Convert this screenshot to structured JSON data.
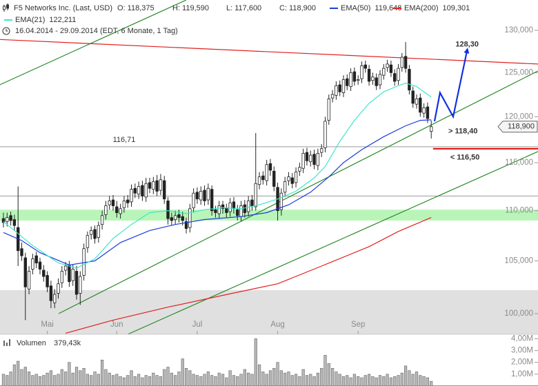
{
  "header": {
    "title": "F5 Networks Inc. (Last, USD)",
    "quote": [
      "O: 118,375",
      "H: 119,590",
      "L: 117,600",
      "C: 118,900"
    ],
    "period": "16.04.2014 - 29.09.2014 (EDT, 6 Monate, 1 Tag)"
  },
  "chart_data": {
    "type": "candlestick",
    "log_scale": true,
    "color": "#222222",
    "xlim": [
      -0.94,
      146.2
    ],
    "ylim": [
      98.1,
      133.7
    ],
    "xticks": [
      {
        "value": 12,
        "label": "Mai"
      },
      {
        "value": 31,
        "label": "Jun"
      },
      {
        "value": 53,
        "label": "Jul"
      },
      {
        "value": 75,
        "label": "Aug"
      },
      {
        "value": 97,
        "label": "Sep"
      }
    ],
    "yticks": [
      {
        "value": 100,
        "label": "100,000"
      },
      {
        "value": 105,
        "label": "105,000"
      },
      {
        "value": 110,
        "label": "110,000"
      },
      {
        "value": 115,
        "label": "115,000"
      },
      {
        "value": 120,
        "label": "120,000"
      },
      {
        "value": 125,
        "label": "125,000"
      },
      {
        "value": 130,
        "label": "130,000"
      }
    ],
    "open": [
      109.2,
      108.9,
      109.5,
      109.1,
      108.3,
      106.2,
      105.3,
      102.3,
      104.2,
      105.5,
      104.9,
      104.1,
      103.6,
      102.6,
      101.0,
      101.9,
      102.9,
      104.1,
      104.6,
      103.1,
      104.0,
      101.9,
      103.6,
      106.3,
      107.6,
      108.1,
      107.3,
      108.6,
      109.6,
      110.6,
      111.1,
      110.4,
      109.7,
      110.3,
      111.1,
      110.9,
      112.3,
      111.7,
      112.6,
      111.4,
      112.9,
      112.2,
      113.1,
      112.1,
      113.1,
      111.0,
      109.3,
      109.1,
      109.6,
      109.4,
      108.9,
      108.3,
      110.3,
      111.9,
      111.1,
      112.1,
      111.1,
      112.2,
      110.1,
      109.7,
      110.6,
      110.3,
      109.9,
      110.9,
      110.1,
      109.4,
      110.6,
      109.9,
      111.1,
      110.4,
      112.7,
      113.6,
      113.1,
      114.9,
      114.1,
      112.4,
      110.1,
      111.9,
      113.1,
      113.4,
      112.9,
      114.1,
      114.4,
      116.1,
      115.1,
      115.9,
      114.7,
      116.1,
      116.6,
      119.6,
      122.1,
      122.4,
      123.6,
      122.7,
      124.3,
      123.4,
      125.1,
      124.1,
      124.3,
      125.9,
      125.4,
      124.1,
      124.4,
      123.6,
      124.7,
      125.6,
      125.9,
      124.9,
      124.1,
      125.6,
      126.9,
      125.4,
      122.9,
      121.4,
      122.1,
      120.4,
      121.1,
      118.375
    ],
    "high": [
      109.8,
      109.8,
      109.9,
      109.6,
      112.5,
      106.8,
      105.8,
      104.5,
      105.7,
      105.9,
      105.3,
      104.6,
      104.0,
      103.1,
      102.3,
      103.3,
      104.5,
      104.9,
      105.0,
      104.7,
      104.5,
      104.0,
      106.7,
      107.9,
      108.4,
      108.5,
      108.9,
      110.0,
      111.0,
      111.5,
      111.6,
      111.0,
      110.7,
      111.5,
      111.6,
      112.7,
      112.8,
      113.0,
      113.1,
      113.4,
      113.4,
      113.5,
      113.7,
      113.8,
      113.6,
      111.4,
      109.8,
      110.0,
      110.1,
      109.9,
      109.3,
      110.7,
      112.3,
      112.4,
      112.5,
      112.6,
      112.8,
      112.6,
      110.5,
      111.0,
      111.0,
      110.7,
      111.3,
      111.4,
      110.6,
      111.0,
      111.1,
      111.5,
      111.6,
      118.2,
      114.0,
      114.1,
      115.3,
      115.4,
      114.6,
      112.9,
      112.3,
      113.5,
      114.0,
      113.9,
      114.5,
      115.0,
      116.5,
      116.6,
      116.3,
      116.4,
      116.5,
      117.0,
      120.0,
      122.5,
      123.0,
      124.0,
      124.1,
      124.7,
      124.8,
      125.5,
      125.6,
      124.7,
      126.3,
      126.4,
      125.9,
      125.0,
      124.9,
      125.3,
      126.0,
      126.5,
      126.4,
      125.4,
      126.0,
      127.3,
      128.6,
      125.9,
      123.4,
      122.5,
      122.6,
      121.5,
      121.6,
      119.59
    ],
    "low": [
      108.3,
      108.4,
      108.5,
      108.0,
      104.5,
      105.0,
      99.4,
      101.8,
      103.7,
      104.3,
      103.7,
      103.0,
      102.0,
      100.5,
      100.5,
      101.4,
      102.4,
      103.6,
      102.5,
      102.6,
      101.3,
      100.8,
      103.1,
      105.8,
      107.1,
      106.7,
      106.8,
      108.1,
      109.1,
      110.1,
      110.0,
      109.3,
      109.2,
      109.8,
      110.3,
      110.4,
      111.3,
      111.2,
      111.0,
      110.9,
      111.8,
      111.7,
      111.5,
      111.6,
      110.7,
      108.6,
      108.5,
      108.6,
      108.8,
      108.5,
      107.7,
      107.8,
      109.8,
      110.7,
      110.6,
      110.5,
      110.6,
      109.5,
      109.3,
      109.2,
      109.7,
      109.3,
      109.4,
      109.7,
      109.0,
      108.9,
      109.3,
      109.4,
      110.0,
      110.0,
      112.2,
      112.7,
      112.6,
      113.6,
      112.0,
      109.0,
      109.5,
      111.4,
      112.6,
      112.3,
      112.4,
      113.6,
      113.9,
      114.7,
      114.6,
      114.3,
      114.2,
      115.6,
      116.1,
      119.1,
      121.6,
      121.9,
      122.3,
      122.2,
      123.0,
      122.9,
      123.5,
      123.6,
      123.8,
      125.0,
      123.5,
      123.6,
      123.0,
      123.1,
      124.2,
      125.1,
      124.5,
      123.5,
      123.6,
      125.1,
      125.0,
      122.5,
      121.0,
      120.9,
      120.0,
      119.9,
      119.3,
      117.6
    ],
    "close": [
      108.8,
      109.3,
      109.0,
      108.5,
      106.0,
      105.5,
      102.5,
      104.0,
      105.2,
      104.8,
      104.2,
      103.5,
      102.5,
      101.2,
      101.8,
      102.8,
      104.0,
      104.5,
      103.0,
      104.2,
      101.8,
      103.5,
      106.2,
      107.5,
      108.0,
      107.2,
      108.5,
      109.5,
      110.5,
      111.0,
      110.5,
      109.8,
      110.2,
      111.0,
      110.8,
      112.2,
      111.8,
      112.5,
      111.5,
      112.8,
      112.3,
      113.0,
      112.0,
      113.2,
      111.2,
      109.2,
      109.0,
      109.5,
      109.3,
      109.0,
      108.2,
      110.2,
      111.8,
      111.2,
      112.0,
      111.0,
      112.3,
      110.0,
      109.8,
      110.5,
      110.2,
      109.8,
      110.8,
      110.2,
      109.5,
      110.5,
      109.8,
      111.0,
      110.5,
      112.8,
      113.5,
      113.2,
      114.8,
      114.2,
      112.5,
      110.0,
      111.8,
      113.0,
      113.5,
      112.8,
      114.0,
      114.5,
      116.0,
      115.2,
      115.8,
      114.8,
      116.0,
      116.5,
      119.5,
      122.0,
      122.5,
      123.5,
      122.8,
      124.2,
      123.5,
      125.0,
      124.0,
      124.2,
      125.8,
      125.5,
      124.0,
      124.5,
      123.5,
      124.8,
      125.5,
      126.0,
      125.0,
      124.0,
      125.5,
      126.8,
      125.5,
      123.0,
      121.5,
      122.0,
      120.5,
      121.0,
      119.8,
      118.9
    ],
    "last_price": {
      "value": 118.9,
      "label": "118,900"
    },
    "overlays": [
      {
        "name": "EMA(21)",
        "color": "#3ee6c8",
        "last": "122,211",
        "x": [
          0,
          8,
          15,
          20,
          25,
          30,
          35,
          40,
          45,
          50,
          55,
          60,
          65,
          70,
          75,
          80,
          85,
          88,
          92,
          96,
          100,
          104,
          108,
          110,
          113,
          117
        ],
        "values": [
          108.9,
          106.5,
          104.8,
          104.3,
          105.2,
          107.2,
          108.6,
          109.8,
          110.0,
          109.7,
          110.1,
          110.3,
          110.2,
          110.6,
          111.2,
          112.0,
          113.4,
          114.6,
          117.3,
          119.6,
          121.5,
          122.8,
          123.5,
          123.8,
          123.4,
          122.2
        ]
      },
      {
        "name": "EMA(50)",
        "color": "#1a3adf",
        "last": "119,648",
        "x": [
          0,
          5,
          10,
          18,
          25,
          32,
          40,
          47,
          55,
          65,
          72,
          78,
          84,
          89,
          93,
          98,
          104,
          110,
          114,
          117
        ],
        "values": [
          107.8,
          107.0,
          105.8,
          104.6,
          105.0,
          106.8,
          108.0,
          108.6,
          109.1,
          109.4,
          109.8,
          110.6,
          111.9,
          113.5,
          115.0,
          116.4,
          117.8,
          119.0,
          119.6,
          119.65
        ]
      },
      {
        "name": "EMA(200)",
        "color": "#e02020",
        "last": "109,301",
        "x": [
          17,
          30,
          45,
          60,
          75,
          87,
          100,
          108,
          117
        ],
        "values": [
          98.2,
          99.4,
          100.6,
          101.7,
          102.8,
          104.5,
          106.4,
          107.9,
          109.3
        ]
      }
    ],
    "bands": [
      {
        "from": 109.0,
        "to": 110.1,
        "color": "#b9f5b9"
      },
      {
        "from": 98.1,
        "to": 102.2,
        "color": "#e0e0e0"
      }
    ],
    "levels": [
      {
        "value": 116.71,
        "label": "116,71",
        "color": "#9a9a9a"
      },
      {
        "value": 111.5,
        "color": "#9a9a9a"
      },
      {
        "value": 116.5,
        "label": "< 116,50",
        "color": "#dd0000",
        "from": 117.5
      }
    ],
    "trendlines": [
      {
        "color": "#2a8a2a",
        "x": [
          -1,
          50
        ],
        "values": [
          123.6,
          133.7
        ]
      },
      {
        "color": "#2a8a2a",
        "x": [
          15.1,
          146.2
        ],
        "values": [
          100,
          125.2
        ]
      },
      {
        "color": "#2a8a2a",
        "x": [
          34,
          146.2
        ],
        "values": [
          98.1,
          116.2
        ]
      },
      {
        "color": "#e02020",
        "x": [
          -1,
          146.2
        ],
        "values": [
          128.9,
          126.0
        ]
      }
    ],
    "projection": {
      "color": "#1030e0",
      "x": [
        117.9,
        119.4,
        123,
        126.8
      ],
      "values": [
        119.5,
        122.7,
        120.0,
        127.6
      ],
      "target": {
        "value": 128.3,
        "label": "128,30"
      },
      "support": {
        "value": 118.4,
        "label": "> 118,40"
      }
    },
    "volume": {
      "name": "Volumen",
      "last": "379,43k",
      "color": "#b8b8b8",
      "ylim": [
        0,
        4.2
      ],
      "yticks": [
        {
          "value": 1,
          "label": "1,00M"
        },
        {
          "value": 2,
          "label": "2,00M"
        },
        {
          "value": 3,
          "label": "3,00M"
        },
        {
          "value": 4,
          "label": "4,00M"
        }
      ],
      "values": [
        1.0,
        0.9,
        1.2,
        1.8,
        2.1,
        1.4,
        1.6,
        1.2,
        0.9,
        1.0,
        0.8,
        0.9,
        1.1,
        1.3,
        0.9,
        1.0,
        1.4,
        1.2,
        2.0,
        1.1,
        1.6,
        1.3,
        1.5,
        1.0,
        0.9,
        1.2,
        1.0,
        2.2,
        1.4,
        1.1,
        0.9,
        1.0,
        0.8,
        0.7,
        0.9,
        1.3,
        0.8,
        1.0,
        0.7,
        0.9,
        0.8,
        1.1,
        0.9,
        0.8,
        1.4,
        1.6,
        1.1,
        0.9,
        1.2,
        2.3,
        1.5,
        1.3,
        1.0,
        0.9,
        0.8,
        1.0,
        1.2,
        0.9,
        0.8,
        1.1,
        1.0,
        0.7,
        1.3,
        0.9,
        0.8,
        1.0,
        1.4,
        1.1,
        1.0,
        4.0,
        1.8,
        1.2,
        1.0,
        1.3,
        1.5,
        2.0,
        1.3,
        1.1,
        1.2,
        0.9,
        1.0,
        0.8,
        1.4,
        0.9,
        1.0,
        0.8,
        1.1,
        1.5,
        2.6,
        1.9,
        1.5,
        1.2,
        1.0,
        0.8,
        0.9,
        0.7,
        1.0,
        0.8,
        0.7,
        0.9,
        1.0,
        0.8,
        0.7,
        0.9,
        0.8,
        1.0,
        0.7,
        0.8,
        0.9,
        1.1,
        1.7,
        1.3,
        1.0,
        1.2,
        0.9,
        0.8,
        0.7,
        0.4
      ]
    }
  }
}
